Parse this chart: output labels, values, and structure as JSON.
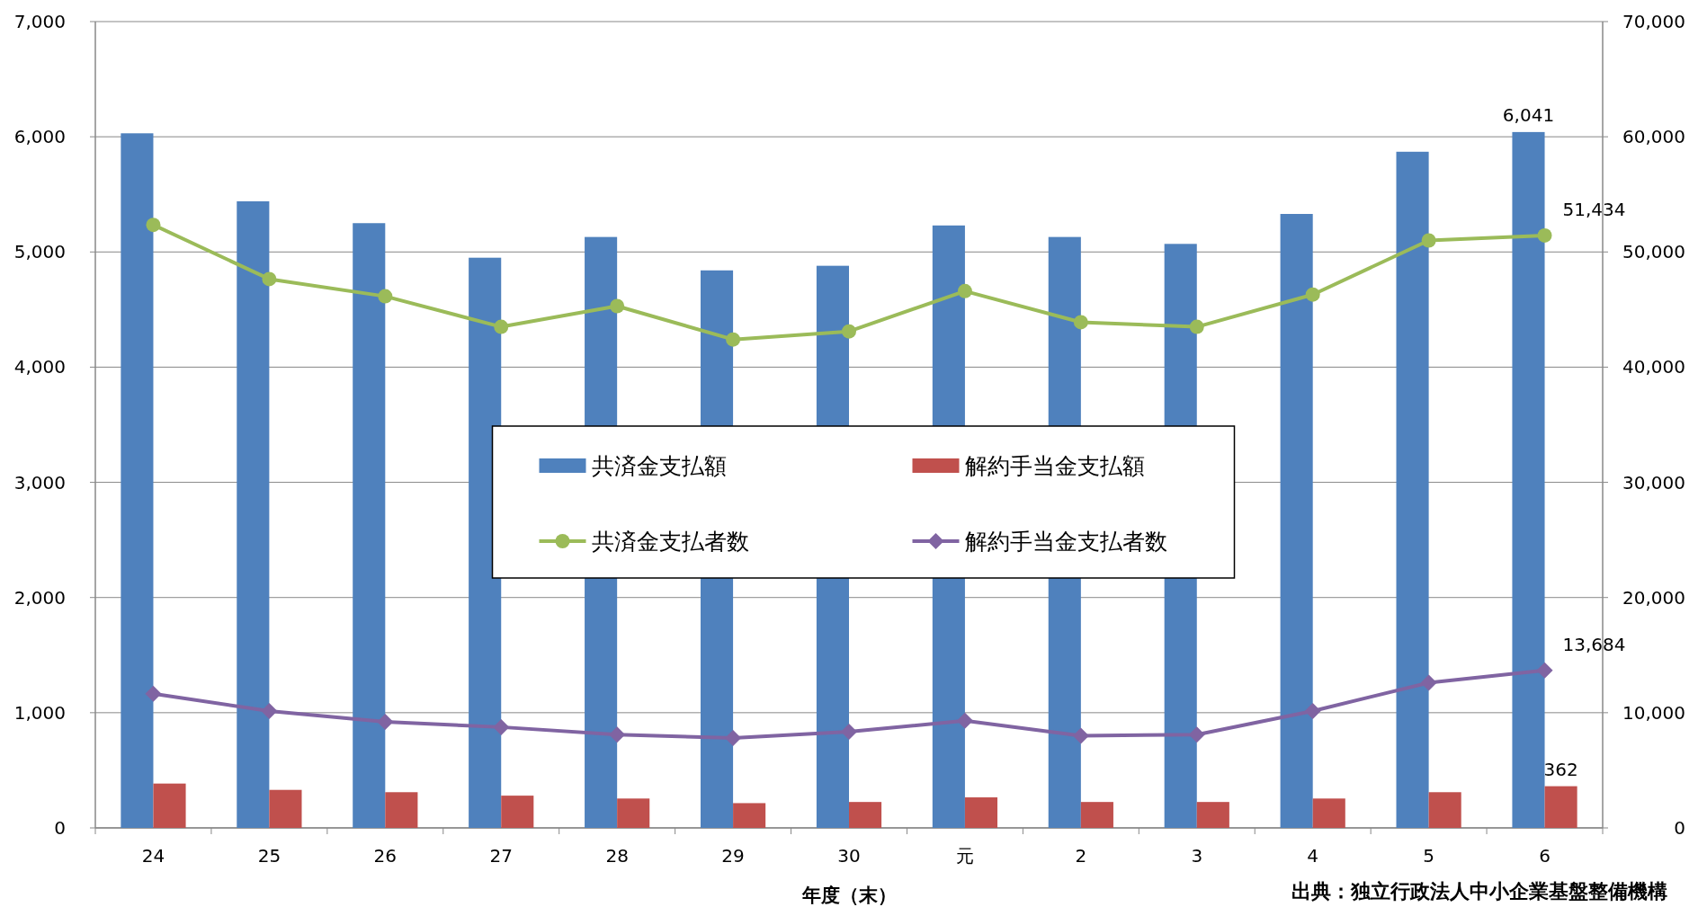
{
  "chart_data": {
    "type": "bar",
    "xlabel": "年度（末）",
    "categories": [
      "24",
      "25",
      "26",
      "27",
      "28",
      "29",
      "30",
      "元",
      "2",
      "3",
      "4",
      "5",
      "6"
    ],
    "series": [
      {
        "name": "共済金支払額",
        "color": "#4f81bd",
        "values": [
          6030,
          5440,
          5250,
          4950,
          5130,
          4840,
          4880,
          5230,
          5130,
          5070,
          5330,
          5870,
          6041
        ],
        "value_labels": [
          null,
          null,
          null,
          null,
          null,
          null,
          null,
          null,
          null,
          null,
          null,
          null,
          "6,041"
        ]
      },
      {
        "name": "解約手当金支払額",
        "color": "#c0504d",
        "values": [
          385,
          330,
          310,
          280,
          255,
          215,
          225,
          265,
          225,
          225,
          255,
          310,
          362
        ],
        "value_labels": [
          null,
          null,
          null,
          null,
          null,
          null,
          null,
          null,
          null,
          null,
          null,
          null,
          "362"
        ]
      },
      {
        "name": "共済金支払者数",
        "type": "line",
        "axis": "y2",
        "color": "#9bbb59",
        "marker": "circle",
        "values": [
          52350,
          47650,
          46150,
          43500,
          45300,
          42400,
          43100,
          46600,
          43900,
          43500,
          46300,
          51000,
          51434
        ],
        "value_labels": [
          null,
          null,
          null,
          null,
          null,
          null,
          null,
          null,
          null,
          null,
          null,
          null,
          "51,434"
        ]
      },
      {
        "name": "解約手当金支払者数",
        "type": "line",
        "axis": "y2",
        "color": "#8064a2",
        "marker": "diamond",
        "values": [
          11650,
          10150,
          9200,
          8750,
          8100,
          7800,
          8350,
          9300,
          8000,
          8100,
          10150,
          12600,
          13684
        ],
        "value_labels": [
          null,
          null,
          null,
          null,
          null,
          null,
          null,
          null,
          null,
          null,
          null,
          null,
          "13,684"
        ]
      }
    ],
    "ylim": [
      0,
      7000
    ],
    "yticks": [
      0,
      {
        "value": 1000,
        "label": "1,000"
      },
      {
        "value": 2000,
        "label": "2,000"
      },
      {
        "value": 3000,
        "label": "3,000"
      },
      {
        "value": 4000,
        "label": "4,000"
      },
      {
        "value": 5000,
        "label": "5,000"
      },
      {
        "value": 6000,
        "label": "6,000"
      },
      {
        "value": 7000,
        "label": "7,000"
      }
    ],
    "y2lim": [
      0,
      70000
    ],
    "y2ticks": [
      0,
      {
        "value": 10000,
        "label": "10,000"
      },
      {
        "value": 20000,
        "label": "20,000"
      },
      {
        "value": 30000,
        "label": "30,000"
      },
      {
        "value": 40000,
        "label": "40,000"
      },
      {
        "value": 50000,
        "label": "50,000"
      },
      {
        "value": 60000,
        "label": "60,000"
      },
      {
        "value": 70000,
        "label": "70,000"
      }
    ],
    "grid": "y",
    "legend": "center",
    "annotations": [
      "出典：独立行政法人中小企業基盤整備機構"
    ]
  }
}
